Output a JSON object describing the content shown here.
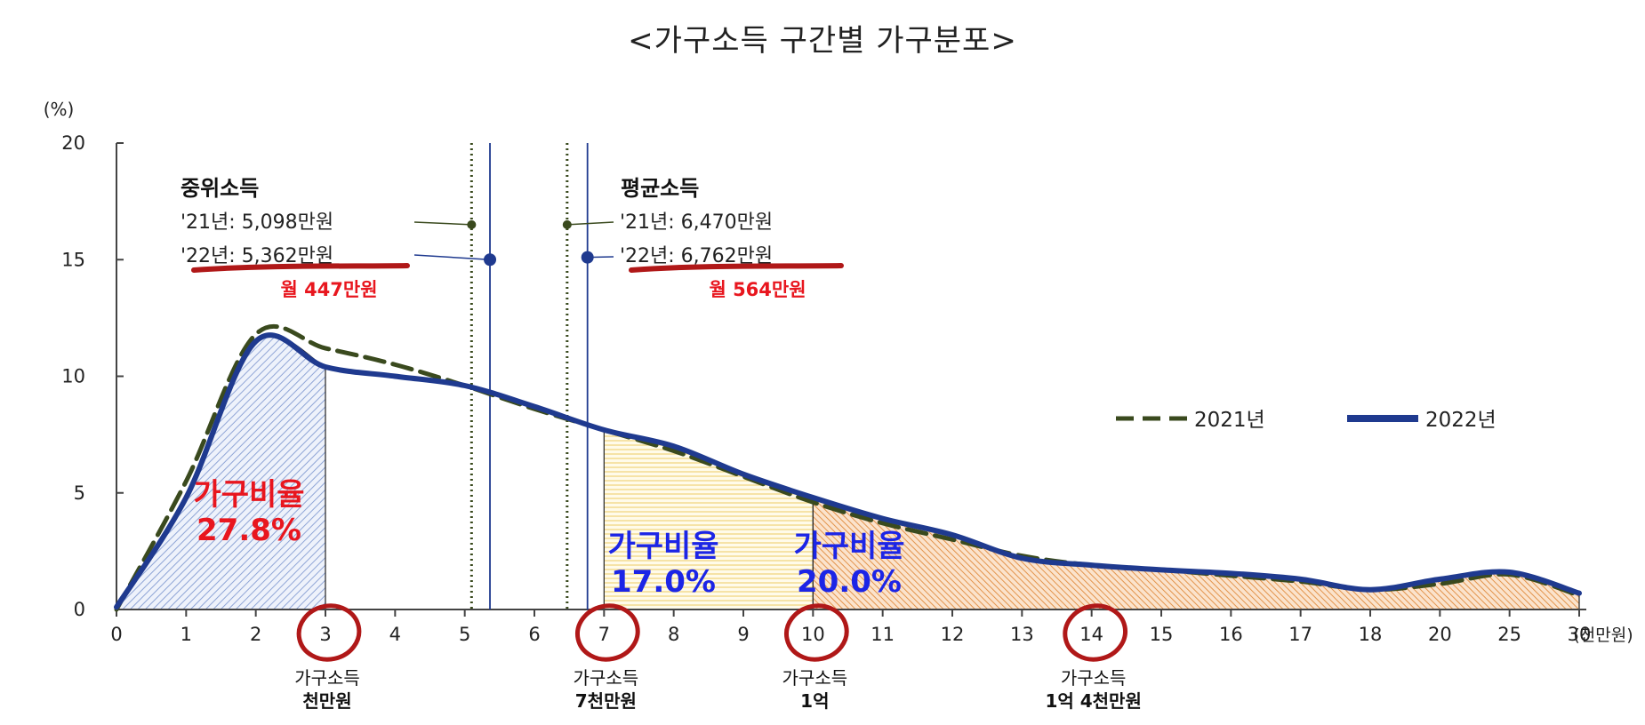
{
  "chart_data": {
    "type": "line",
    "title": "<가구소득 구간별 가구분포>",
    "ylabel": "(%)",
    "xunit": "(천만원)",
    "ylim": [
      0,
      20
    ],
    "yticks": [
      0,
      5,
      10,
      15,
      20
    ],
    "x": [
      "0",
      "1",
      "2",
      "3",
      "4",
      "5",
      "6",
      "7",
      "8",
      "9",
      "10",
      "11",
      "12",
      "13",
      "14",
      "15",
      "16",
      "17",
      "18",
      "20",
      "25",
      "30"
    ],
    "series": [
      {
        "name": "2021년",
        "style": "dashed",
        "color": "#3a4a1e",
        "values": [
          0,
          5.5,
          11.8,
          11.2,
          10.5,
          9.6,
          8.6,
          7.7,
          6.8,
          5.7,
          4.6,
          3.7,
          3.0,
          2.3,
          1.9,
          1.7,
          1.45,
          1.2,
          0.85,
          1.1,
          1.5,
          0.6
        ]
      },
      {
        "name": "2022년",
        "style": "solid",
        "color": "#1f3a8f",
        "values": [
          0.1,
          4.8,
          11.5,
          10.4,
          10.0,
          9.6,
          8.7,
          7.7,
          7.0,
          5.8,
          4.8,
          3.9,
          3.2,
          2.2,
          1.9,
          1.7,
          1.55,
          1.3,
          0.85,
          1.3,
          1.6,
          0.7
        ]
      }
    ],
    "reference_lines": [
      {
        "x": 5.098,
        "style": "dotted",
        "color": "#3a4a1e",
        "y": 16.5
      },
      {
        "x": 5.362,
        "style": "solid",
        "color": "#1f3a8f",
        "y": 15.0
      },
      {
        "x": 6.47,
        "style": "dotted",
        "color": "#3a4a1e",
        "y": 16.5
      },
      {
        "x": 6.762,
        "style": "solid",
        "color": "#1f3a8f",
        "y": 15.1
      }
    ],
    "shaded_regions": [
      {
        "from": 0,
        "to": 3,
        "pattern": "blue-diagonal"
      },
      {
        "from": 7,
        "to": 10,
        "pattern": "yellow-horizontal"
      },
      {
        "from": 10,
        "to": 30,
        "pattern": "orange-diagonal"
      }
    ],
    "legend_position": "right",
    "grid": false
  },
  "annotations": {
    "median": {
      "heading": "중위소득",
      "line_2021": "'21년: 5,098만원",
      "line_2022": "'22년: 5,362만원",
      "monthly": "월 447만원"
    },
    "mean": {
      "heading": "평균소득",
      "line_2021": "'21년: 6,470만원",
      "line_2022": "'22년: 6,762만원",
      "monthly": "월 564만원"
    },
    "ratios": [
      {
        "label": "가구비율",
        "value": "27.8%",
        "color": "#e8161e"
      },
      {
        "label": "가구비율",
        "value": "17.0%",
        "color": "#1c25e6"
      },
      {
        "label": "가구비율",
        "value": "20.0%",
        "color": "#1c25e6"
      }
    ],
    "income_marks": [
      {
        "tick": "3",
        "line1": "가구소득",
        "line2": "천만원"
      },
      {
        "tick": "7",
        "line1": "가구소득",
        "line2": "7천만원"
      },
      {
        "tick": "10",
        "line1": "가구소득",
        "line2": "1억"
      },
      {
        "tick": "14",
        "line1": "가구소득",
        "line2": "1억 4천만원"
      }
    ]
  },
  "colors": {
    "axis": "#444444",
    "highlight_red": "#b01818",
    "ratio_red": "#e8161e",
    "ratio_blue": "#1c25e6",
    "hatch_blue": "#8fa5d6",
    "hatch_yellow": "#f3d98a",
    "hatch_orange": "#e08b3e"
  }
}
